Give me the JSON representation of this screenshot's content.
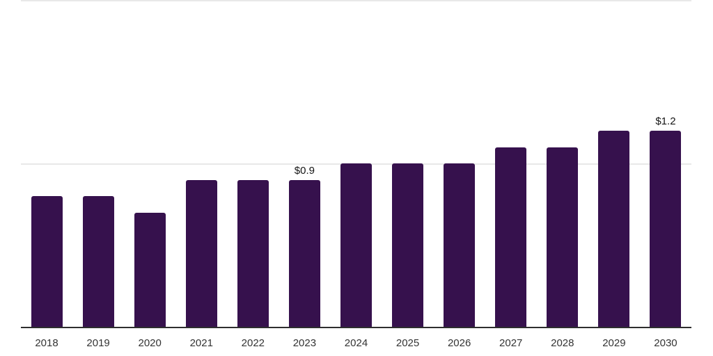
{
  "chart_data": {
    "type": "bar",
    "title": "",
    "xlabel": "",
    "ylabel": "",
    "categories": [
      "2018",
      "2019",
      "2020",
      "2021",
      "2022",
      "2023",
      "2024",
      "2025",
      "2026",
      "2027",
      "2028",
      "2029",
      "2030"
    ],
    "values": [
      0.8,
      0.8,
      0.7,
      0.9,
      0.9,
      0.9,
      1.0,
      1.0,
      1.0,
      1.1,
      1.1,
      1.2,
      1.2
    ],
    "bar_labels": [
      "",
      "",
      "",
      "",
      "",
      "$0.9",
      "",
      "",
      "",
      "",
      "",
      "",
      "$1.2"
    ],
    "ylim": [
      0,
      2.0
    ],
    "gridline_values": [
      1.0,
      2.0
    ],
    "grid": "horizontal",
    "legend_position": "none",
    "colors": {
      "bar": "#36114d",
      "axis": "#2e2e2e",
      "grid": "#e8e8e8",
      "value_label_text": "#141414",
      "tick_text": "#333333",
      "background": "#ffffff"
    }
  }
}
